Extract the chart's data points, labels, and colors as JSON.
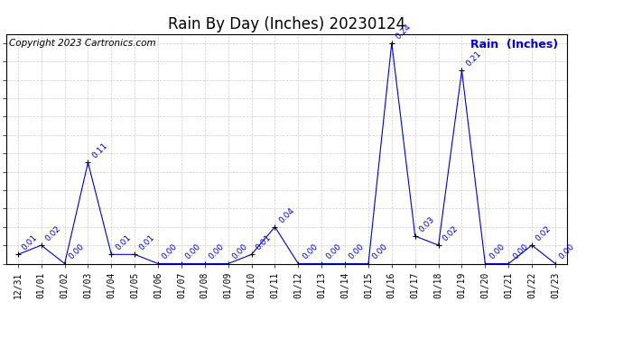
{
  "title": "Rain By Day (Inches) 20230124",
  "copyright": "Copyright 2023 Cartronics.com",
  "legend_label": "Rain  (Inches)",
  "dates": [
    "12/31",
    "01/01",
    "01/02",
    "01/03",
    "01/04",
    "01/05",
    "01/06",
    "01/07",
    "01/08",
    "01/09",
    "01/10",
    "01/11",
    "01/12",
    "01/13",
    "01/14",
    "01/15",
    "01/16",
    "01/17",
    "01/18",
    "01/19",
    "01/20",
    "01/21",
    "01/22",
    "01/23"
  ],
  "values": [
    0.01,
    0.02,
    0.0,
    0.11,
    0.01,
    0.01,
    0.0,
    0.0,
    0.0,
    0.0,
    0.01,
    0.04,
    0.0,
    0.0,
    0.0,
    0.0,
    0.24,
    0.03,
    0.02,
    0.21,
    0.0,
    0.0,
    0.02,
    0.0
  ],
  "line_color": "#0000cc",
  "marker_color": "#000000",
  "label_color": "#0000cc",
  "background_color": "#ffffff",
  "plot_bg_color": "#ffffff",
  "grid_color": "#aaaaaa",
  "ylim": [
    0.0,
    0.25
  ],
  "ytick_interval": 0.02,
  "title_fontsize": 12,
  "copyright_fontsize": 7.5,
  "legend_fontsize": 9,
  "label_fontsize": 6.5,
  "tick_fontsize": 7
}
